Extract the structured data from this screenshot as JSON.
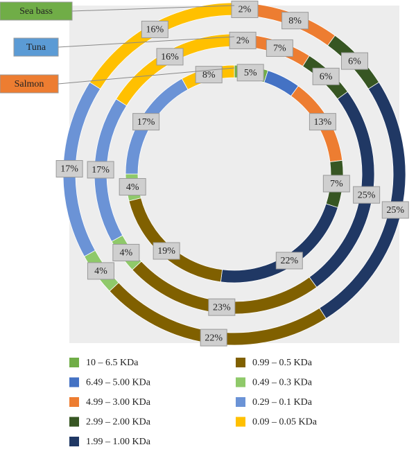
{
  "chart_data": {
    "type": "donut",
    "categories": [
      "10 – 6.5 KDa",
      "6.49 – 5.00 KDa",
      "4.99 – 3.00 KDa",
      "2.99 – 2.00 KDa",
      "1.99 – 1.00 KDa",
      "0.99 – 0.5 KDa",
      "0.49 – 0.3 KDa",
      "0.29 – 0.1 KDa",
      "0.09 – 0.05 KDa"
    ],
    "colors": [
      "#70ad47",
      "#4472c4",
      "#ed7d31",
      "#375623",
      "#203864",
      "#806000",
      "#8fc96a",
      "#6b93d6",
      "#ffc000"
    ],
    "series": [
      {
        "name": "Salmon",
        "color": "#ed7d31",
        "values": [
          5,
          5,
          13,
          7,
          22,
          19,
          4,
          17,
          8
        ],
        "value_labels": [
          "5%",
          null,
          "13%",
          "7%",
          "22%",
          "19%",
          "4%",
          "17%",
          "8%"
        ]
      },
      {
        "name": "Tuna",
        "color": "#5b9bd5",
        "values": [
          2,
          0,
          7,
          6,
          25,
          23,
          4,
          17,
          16
        ],
        "value_labels": [
          "2%",
          null,
          "7%",
          "6%",
          "25%",
          "23%",
          "4%",
          "17%",
          "16%"
        ]
      },
      {
        "name": "Sea bass",
        "color": "#70ad47",
        "values": [
          2,
          0,
          8,
          6,
          25,
          22,
          4,
          17,
          16
        ],
        "value_labels": [
          "2%",
          null,
          "8%",
          "6%",
          "25%",
          "22%",
          "4%",
          "17%",
          "16%"
        ]
      }
    ]
  }
}
